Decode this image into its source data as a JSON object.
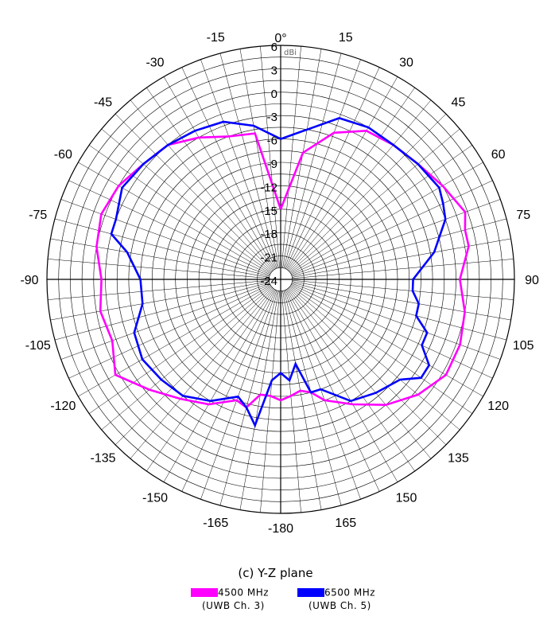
{
  "chart_data": {
    "type": "polar",
    "title": "(c) Y-Z plane",
    "radial_unit": "dBi",
    "radial_range": [
      -24,
      6
    ],
    "radial_ticks": [
      "6",
      "3",
      "0",
      "-3",
      "-6",
      "-9",
      "-12",
      "-15",
      "-18",
      "-21",
      "-24"
    ],
    "angle_ticks": [
      {
        "deg": 0,
        "label": "0°"
      },
      {
        "deg": 15,
        "label": "15"
      },
      {
        "deg": 30,
        "label": "30"
      },
      {
        "deg": 45,
        "label": "45"
      },
      {
        "deg": 60,
        "label": "60"
      },
      {
        "deg": 75,
        "label": "75"
      },
      {
        "deg": 90,
        "label": "90"
      },
      {
        "deg": 105,
        "label": "105"
      },
      {
        "deg": 120,
        "label": "120"
      },
      {
        "deg": 135,
        "label": "135"
      },
      {
        "deg": 150,
        "label": "150"
      },
      {
        "deg": 165,
        "label": "165"
      },
      {
        "deg": 180,
        "label": "-180"
      },
      {
        "deg": -165,
        "label": "-165"
      },
      {
        "deg": -150,
        "label": "-150"
      },
      {
        "deg": -135,
        "label": "-135"
      },
      {
        "deg": -120,
        "label": "-120"
      },
      {
        "deg": -105,
        "label": "-105"
      },
      {
        "deg": -90,
        "label": "-90"
      },
      {
        "deg": -75,
        "label": "-75"
      },
      {
        "deg": -60,
        "label": "-60"
      },
      {
        "deg": -45,
        "label": "-45"
      },
      {
        "deg": -30,
        "label": "-30"
      },
      {
        "deg": -15,
        "label": "-15"
      }
    ],
    "series": [
      {
        "name": "4500 MHz",
        "sub": "(UWB Ch. 3)",
        "color": "#ff00ff",
        "points": [
          [
            0,
            -15
          ],
          [
            10,
            -7.5
          ],
          [
            20,
            -4
          ],
          [
            30,
            -2
          ],
          [
            40,
            -1.5
          ],
          [
            50,
            -1
          ],
          [
            60,
            0
          ],
          [
            70,
            1.2
          ],
          [
            75,
            0.5
          ],
          [
            80,
            0.5
          ],
          [
            90,
            -1
          ],
          [
            100,
            0
          ],
          [
            110,
            0.5
          ],
          [
            120,
            0.5
          ],
          [
            130,
            -1
          ],
          [
            140,
            -3
          ],
          [
            150,
            -5.5
          ],
          [
            160,
            -7.5
          ],
          [
            165,
            -9
          ],
          [
            170,
            -9.5
          ],
          [
            175,
            -9
          ],
          [
            180,
            -8.5
          ],
          [
            -175,
            -9
          ],
          [
            -170,
            -9
          ],
          [
            -165,
            -7
          ],
          [
            -160,
            -7.5
          ],
          [
            -150,
            -5.5
          ],
          [
            -140,
            -4
          ],
          [
            -130,
            -2
          ],
          [
            -120,
            0.5
          ],
          [
            -110,
            -1
          ],
          [
            -100,
            -0.5
          ],
          [
            -90,
            -1
          ],
          [
            -80,
            0
          ],
          [
            -70,
            0.5
          ],
          [
            -60,
            0
          ],
          [
            -50,
            -1
          ],
          [
            -40,
            -1.5
          ],
          [
            -30,
            -3
          ],
          [
            -20,
            -4.5
          ],
          [
            -10,
            -5
          ],
          [
            0,
            -15
          ]
        ]
      },
      {
        "name": "6500 MHz",
        "sub": "(UWB Ch. 5)",
        "color": "#0000ff",
        "points": [
          [
            0,
            -6
          ],
          [
            10,
            -4.5
          ],
          [
            20,
            -2
          ],
          [
            30,
            -1.5
          ],
          [
            40,
            -1.5
          ],
          [
            50,
            -1
          ],
          [
            60,
            -0.5
          ],
          [
            65,
            -1
          ],
          [
            70,
            -1.5
          ],
          [
            80,
            -4
          ],
          [
            90,
            -7
          ],
          [
            95,
            -7
          ],
          [
            100,
            -6
          ],
          [
            105,
            -6
          ],
          [
            110,
            -4
          ],
          [
            115,
            -4
          ],
          [
            120,
            -2
          ],
          [
            125,
            -2
          ],
          [
            130,
            -4
          ],
          [
            140,
            -5
          ],
          [
            150,
            -6
          ],
          [
            160,
            -9
          ],
          [
            165,
            -9
          ],
          [
            170,
            -13
          ],
          [
            175,
            -11
          ],
          [
            180,
            -12
          ],
          [
            -175,
            -11
          ],
          [
            -170,
            -5
          ],
          [
            -165,
            -7
          ],
          [
            -160,
            -8
          ],
          [
            -150,
            -6
          ],
          [
            -140,
            -4.5
          ],
          [
            -130,
            -4
          ],
          [
            -120,
            -3.5
          ],
          [
            -110,
            -4
          ],
          [
            -100,
            -6
          ],
          [
            -90,
            -6
          ],
          [
            -80,
            -4
          ],
          [
            -75,
            -1.5
          ],
          [
            -70,
            -1.5
          ],
          [
            -60,
            -0.5
          ],
          [
            -50,
            -1
          ],
          [
            -40,
            -1.5
          ],
          [
            -30,
            -2
          ],
          [
            -20,
            -2.5
          ],
          [
            -10,
            -4
          ],
          [
            0,
            -6
          ]
        ]
      }
    ]
  }
}
